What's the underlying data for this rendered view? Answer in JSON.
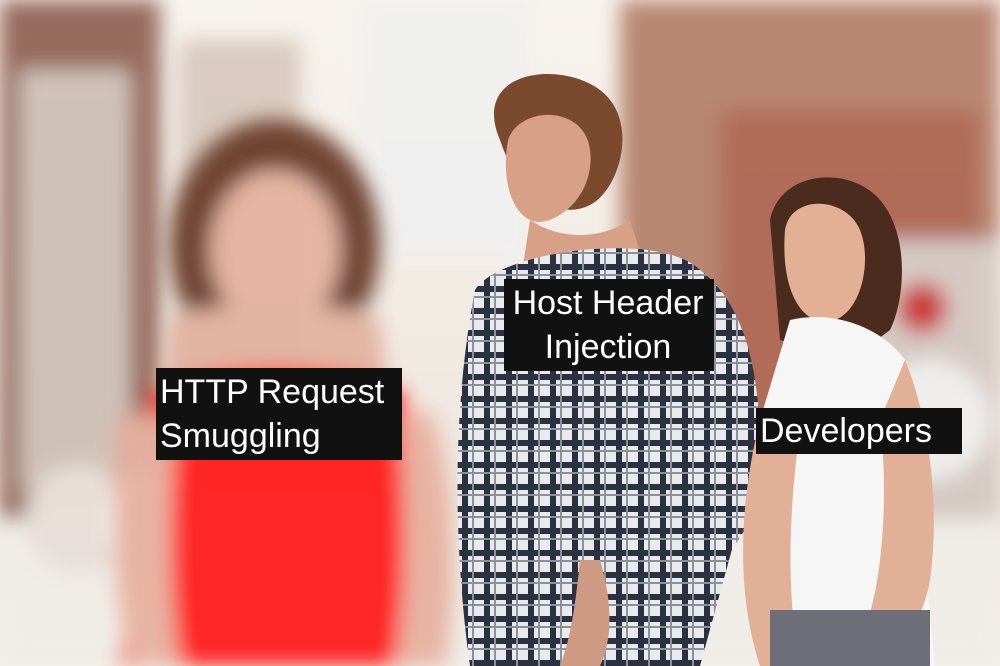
{
  "meme": {
    "labels": {
      "left": "HTTP Request\nSmuggling",
      "center": "Host Header\nInjection",
      "right": "Developers"
    },
    "palette": {
      "red_dress": "#ff1f1f",
      "label_bg": "#111111",
      "label_text": "#ffffff",
      "plaid": "#2b3140",
      "white_top": "#f6f6f6"
    }
  }
}
